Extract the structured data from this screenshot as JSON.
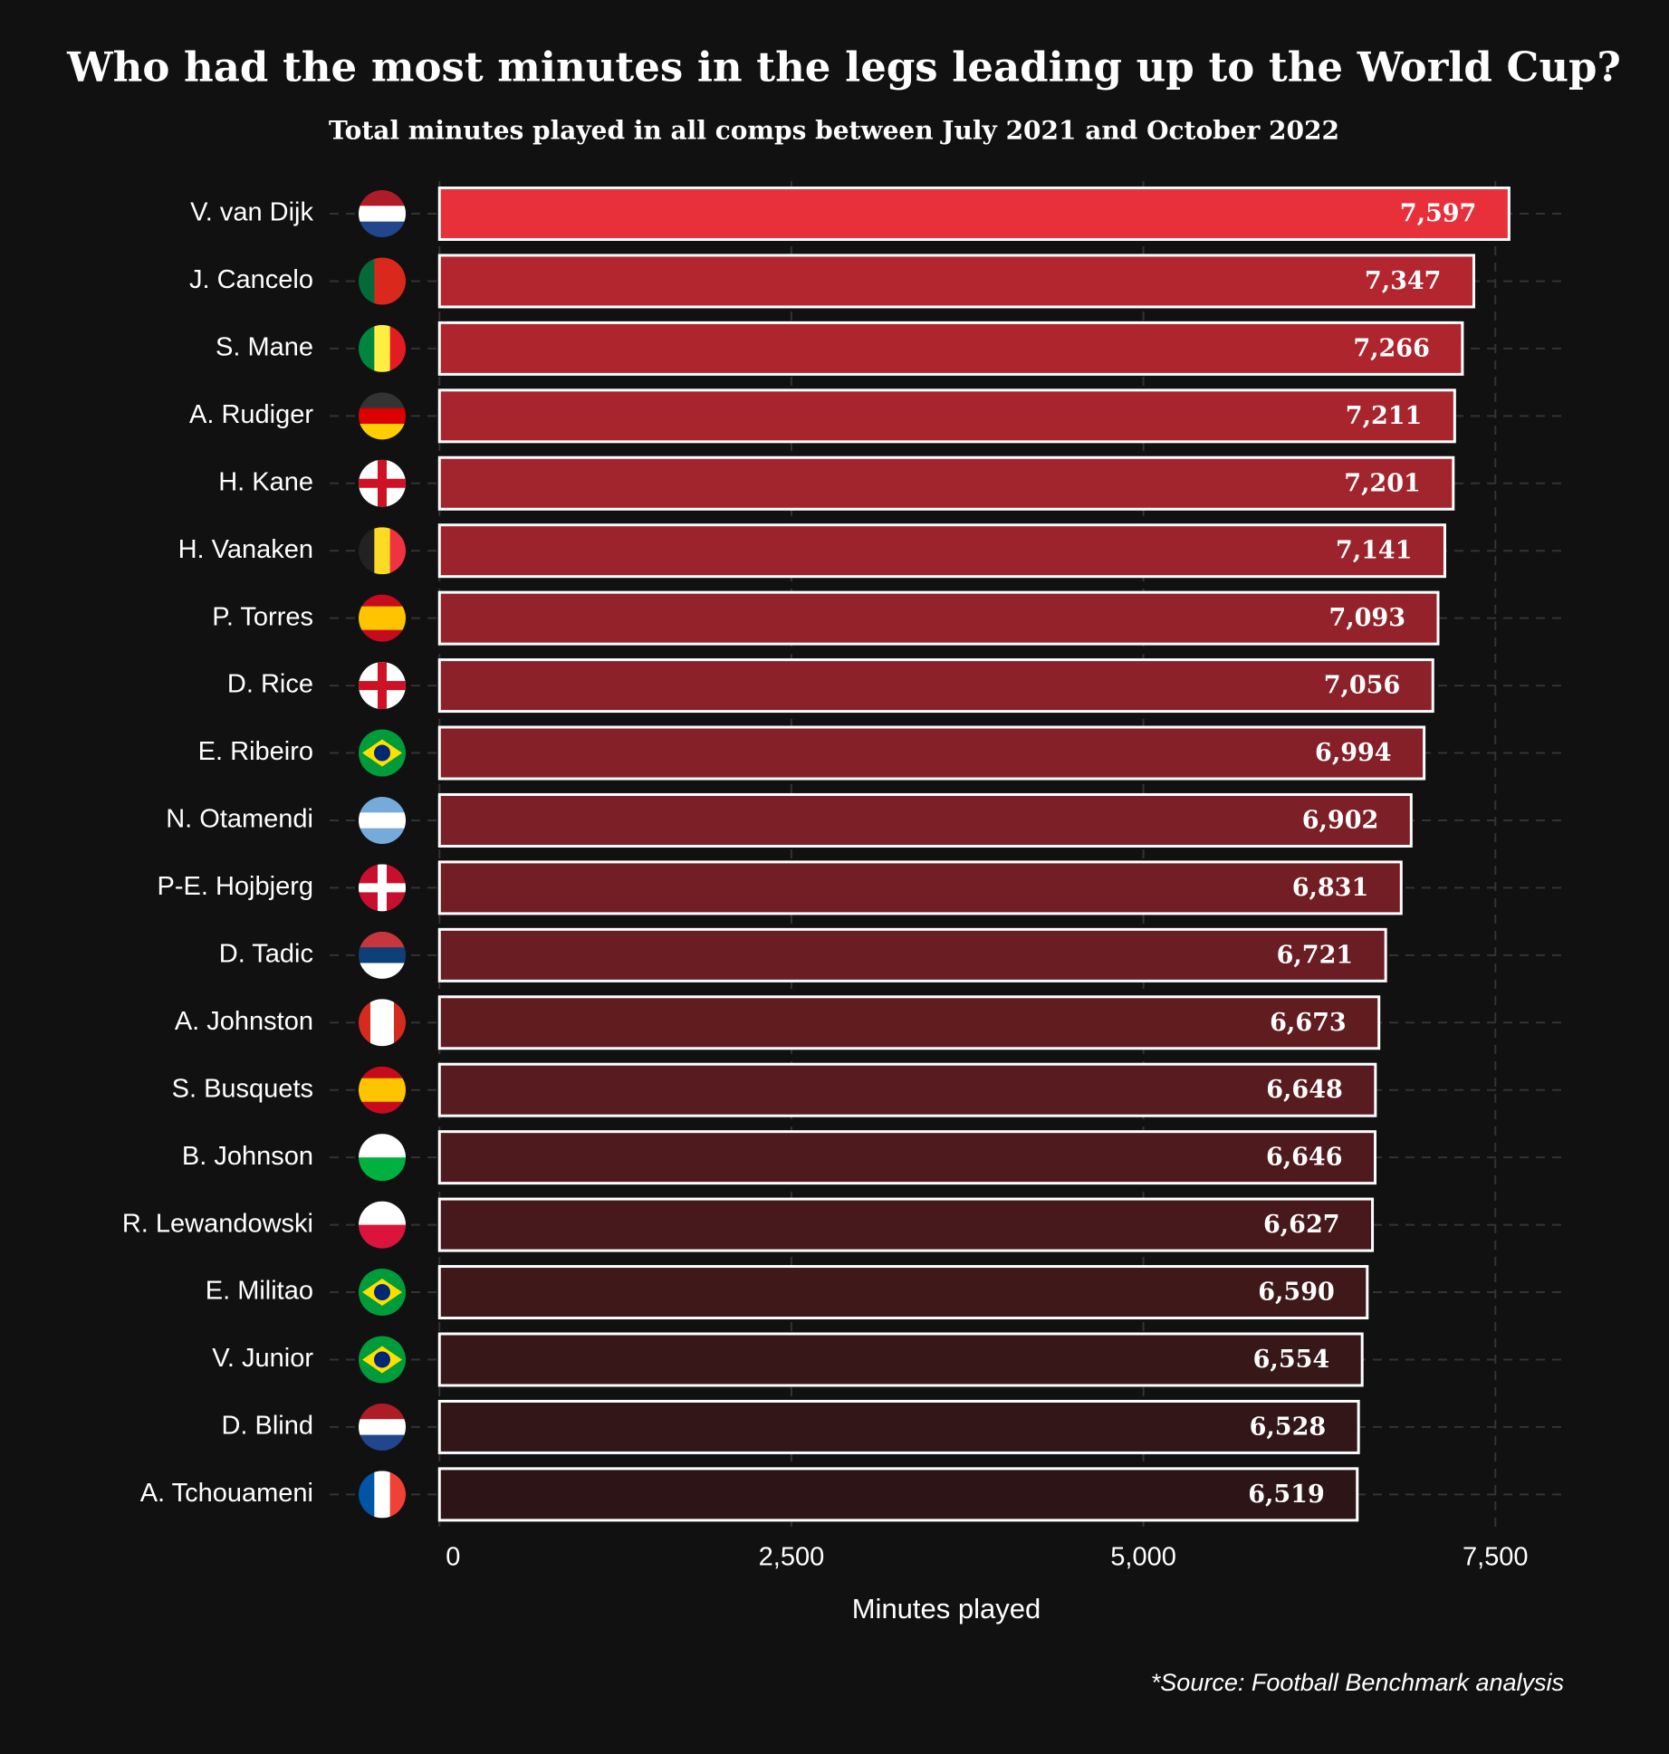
{
  "chart_data": {
    "type": "barh",
    "title": "Who had the most minutes in the legs leading up to the World Cup?",
    "subtitle": "Total minutes played in all comps between July 2021 and October 2022",
    "x_label": "Minutes played",
    "source": "*Source: Football Benchmark analysis",
    "categories": [
      "V. van Dijk",
      "J. Cancelo",
      "S. Mane",
      "A. Rudiger",
      "H. Kane",
      "H. Vanaken",
      "P. Torres",
      "D. Rice",
      "E. Ribeiro",
      "N. Otamendi",
      "P-E. Hojbjerg",
      "D. Tadic",
      "A. Johnston",
      "S. Busquets",
      "B. Johnson",
      "R. Lewandowski",
      "E. Militao",
      "V. Junior",
      "D. Blind",
      "A. Tchouameni"
    ],
    "values": [
      7597,
      7347,
      7266,
      7211,
      7201,
      7141,
      7093,
      7056,
      6994,
      6902,
      6831,
      6721,
      6673,
      6648,
      6646,
      6627,
      6590,
      6554,
      6528,
      6519
    ],
    "value_labels": [
      "7,597",
      "7,347",
      "7,266",
      "7,211",
      "7,201",
      "7,141",
      "7,093",
      "7,056",
      "6,994",
      "6,902",
      "6,831",
      "6,721",
      "6,673",
      "6,648",
      "6,646",
      "6,627",
      "6,590",
      "6,554",
      "6,528",
      "6,519"
    ],
    "colors": [
      "#e8303a",
      "#b3262f",
      "#ae252e",
      "#a8252d",
      "#a2242c",
      "#9c232b",
      "#94222a",
      "#8d2129",
      "#852028",
      "#7c1f26",
      "#731e24",
      "#6a1d22",
      "#611c20",
      "#581b1f",
      "#4f1a1d",
      "#47191c",
      "#3f181a",
      "#381719",
      "#321618",
      "#2d1517"
    ],
    "xlim": [
      -780,
      8000
    ],
    "xticks": [
      0,
      {
        "value": 2500,
        "label": "2,500"
      },
      {
        "value": 5000,
        "label": "5,000"
      },
      {
        "value": 7500,
        "label": "7,500"
      }
    ],
    "grid": true
  }
}
